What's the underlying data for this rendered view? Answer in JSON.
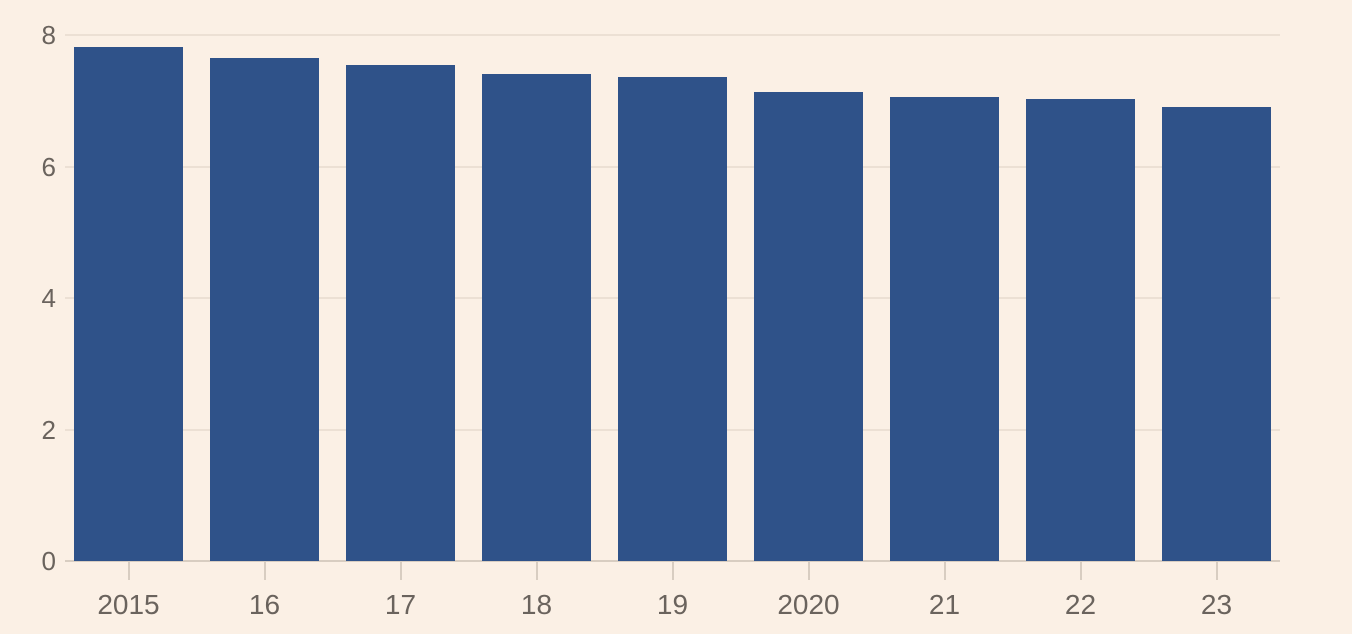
{
  "colors": {
    "background": "#fbf0e5",
    "bar": "#2f5289",
    "gridline": "#ece0d4",
    "axis_line": "#d8cdc1",
    "axis_text": "#6a635d"
  },
  "chart_data": {
    "type": "bar",
    "categories": [
      "2015",
      "16",
      "17",
      "18",
      "19",
      "2020",
      "21",
      "22",
      "23"
    ],
    "values": [
      7.82,
      7.65,
      7.54,
      7.41,
      7.36,
      7.14,
      7.05,
      7.03,
      6.91
    ],
    "title": "",
    "xlabel": "",
    "ylabel": "",
    "ylim": [
      0,
      8
    ],
    "yticks": [
      0,
      2,
      4,
      6,
      8
    ],
    "grid": true,
    "legend": false,
    "bar_color": "#2f5289"
  }
}
